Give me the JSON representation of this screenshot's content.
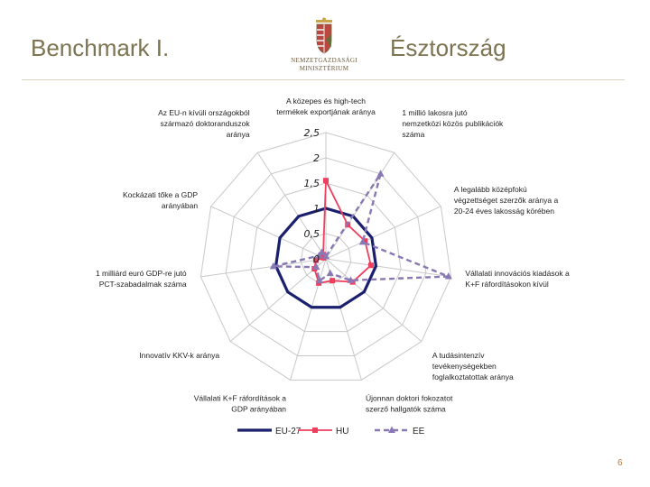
{
  "header": {
    "title": "Benchmark I.",
    "subtitle": "Észtország",
    "logo_line1": "NEMZETGAZDASÁGI",
    "logo_line2": "MINISZTÉRIUM"
  },
  "page_number": "6",
  "colors": {
    "EU-27": "#1a1f6e",
    "HU": "#ee3f5e",
    "EE": "#8a78b4",
    "grid": "#c8c8c8",
    "title": "#7c7450"
  },
  "chart_data": {
    "type": "radar",
    "title": "",
    "categories": [
      [
        "A közepes és high-tech",
        "termékek exportjának aránya"
      ],
      [
        "1 millió lakosra jutó",
        "nemzetközi közös publikációk",
        "száma"
      ],
      [
        "A legalább középfokú",
        "végzettséget szerzők aránya a",
        "20-24 éves lakosság körében"
      ],
      [
        "Vállalati innovációs kiadások a",
        "K+F ráfordításokon kívül"
      ],
      [
        "A tudásintenzív",
        "tevékenységekben",
        "foglalkoztatottak aránya"
      ],
      [
        "Újonnan doktori fokozatot",
        "szerző hallgatók száma"
      ],
      [
        "Vállalati K+F ráfordítások a",
        "GDP arányában"
      ],
      [
        "Innovatív KKV-k aránya"
      ],
      [
        "1 milliárd euró GDP-re jutó",
        "PCT-szabadalmak  száma"
      ],
      [
        "Kockázati tőke a GDP",
        "arányában"
      ],
      [
        "Az EU-n kívüli országokból",
        "származó doktoranduszok",
        "aránya"
      ]
    ],
    "rlim": [
      0,
      2.5
    ],
    "ticks": [
      "0",
      "0,5",
      "1",
      "1,5",
      "2",
      "2,5"
    ],
    "tick_values": [
      0,
      0.5,
      1,
      1.5,
      2,
      2.5
    ],
    "series": [
      {
        "name": "EU-27",
        "values": [
          1,
          1,
          1,
          1,
          1,
          1,
          1,
          1,
          1,
          1,
          1
        ]
      },
      {
        "name": "HU",
        "values": [
          1.55,
          0.8,
          0.85,
          0.9,
          0.7,
          0.45,
          0.5,
          0.3,
          0.2,
          0.05,
          0.1
        ]
      },
      {
        "name": "EE",
        "values": [
          0.05,
          2.0,
          0.8,
          2.45,
          0.65,
          0.3,
          0.45,
          0.25,
          1.05,
          0.15,
          0.15
        ]
      }
    ],
    "grid": true,
    "legend_position": "bottom"
  }
}
